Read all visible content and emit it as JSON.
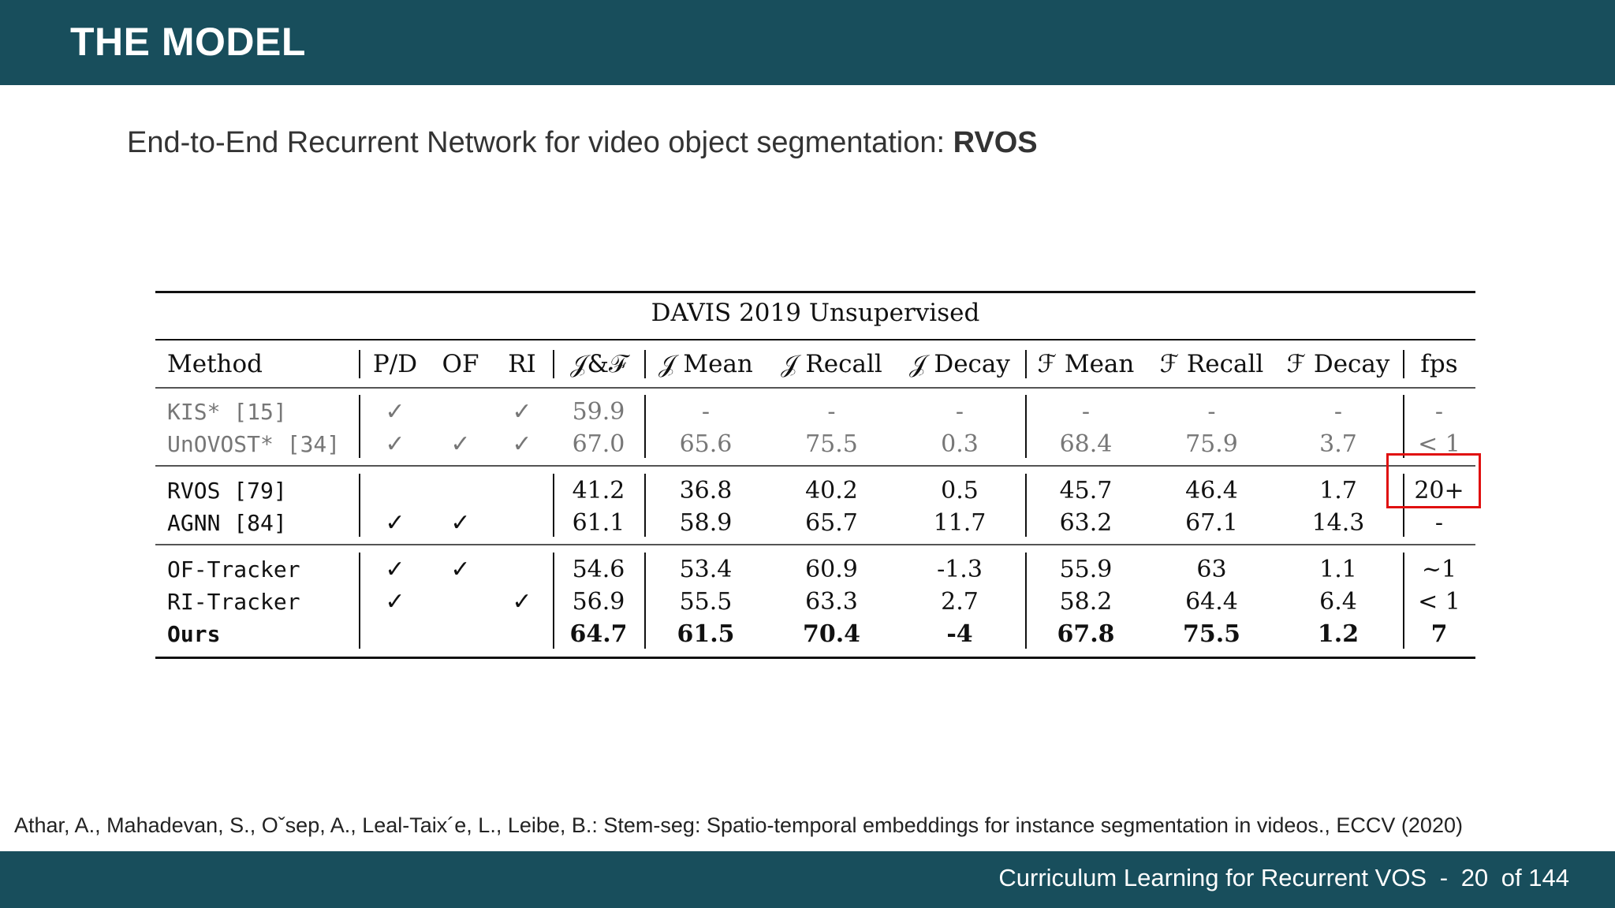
{
  "header": {
    "title": "THE MODEL"
  },
  "subtitle": {
    "text": "End-to-End Recurrent Network for video object segmentation: ",
    "bold": "RVOS"
  },
  "table": {
    "caption": "DAVIS 2019 Unsupervised",
    "columns": [
      "Method",
      "P/D",
      "OF",
      "RI",
      "𝒥&ℱ",
      "𝒥 Mean",
      "𝒥 Recall",
      "𝒥 Decay",
      "ℱ Mean",
      "ℱ Recall",
      "ℱ Decay",
      "fps"
    ],
    "groups": [
      {
        "rows": [
          {
            "method": "KIS* [15]",
            "pd": "✓",
            "of": "",
            "ri": "✓",
            "jf": "59.9",
            "jmean": "-",
            "jrecall": "-",
            "jdecay": "-",
            "fmean": "-",
            "frecall": "-",
            "fdecay": "-",
            "fps": "-",
            "style": "gray"
          },
          {
            "method": "UnOVOST* [34]",
            "pd": "✓",
            "of": "✓",
            "ri": "✓",
            "jf": "67.0",
            "jmean": "65.6",
            "jrecall": "75.5",
            "jdecay": "0.3",
            "fmean": "68.4",
            "frecall": "75.9",
            "fdecay": "3.7",
            "fps": "< 1",
            "style": "gray"
          }
        ]
      },
      {
        "rows": [
          {
            "method": "RVOS [79]",
            "pd": "",
            "of": "",
            "ri": "",
            "jf": "41.2",
            "jmean": "36.8",
            "jrecall": "40.2",
            "jdecay": "0.5",
            "fmean": "45.7",
            "frecall": "46.4",
            "fdecay": "1.7",
            "fps": "20+",
            "style": "normal"
          },
          {
            "method": "AGNN [84]",
            "pd": "✓",
            "of": "✓",
            "ri": "",
            "jf": "61.1",
            "jmean": "58.9",
            "jrecall": "65.7",
            "jdecay": "11.7",
            "fmean": "63.2",
            "frecall": "67.1",
            "fdecay": "14.3",
            "fps": "-",
            "style": "normal"
          }
        ]
      },
      {
        "rows": [
          {
            "method": "OF-Tracker",
            "pd": "✓",
            "of": "✓",
            "ri": "",
            "jf": "54.6",
            "jmean": "53.4",
            "jrecall": "60.9",
            "jdecay": "-1.3",
            "fmean": "55.9",
            "frecall": "63",
            "fdecay": "1.1",
            "fps": "~1",
            "style": "normal"
          },
          {
            "method": "RI-Tracker",
            "pd": "✓",
            "of": "",
            "ri": "✓",
            "jf": "56.9",
            "jmean": "55.5",
            "jrecall": "63.3",
            "jdecay": "2.7",
            "fmean": "58.2",
            "frecall": "64.4",
            "fdecay": "6.4",
            "fps": "< 1",
            "style": "normal"
          },
          {
            "method": "Ours",
            "pd": "",
            "of": "",
            "ri": "",
            "jf": "64.7",
            "jmean": "61.5",
            "jrecall": "70.4",
            "jdecay": "-4",
            "fmean": "67.8",
            "frecall": "75.5",
            "fdecay": "1.2",
            "fps": "7",
            "style": "bold"
          }
        ]
      }
    ],
    "highlight": {
      "cell": "RVOS fps",
      "color": "#e01010"
    }
  },
  "citation": "Athar, A., Mahadevan, S., Oˇsep, A., Leal-Taix´e, L., Leibe, B.: Stem-seg: Spatio-temporal embeddings for instance segmentation in videos., ECCV (2020)",
  "footer": {
    "course": "Curriculum Learning for Recurrent VOS",
    "sep": "-",
    "page": "20",
    "of": "of 144"
  },
  "colors": {
    "header_bg": "#184e5c",
    "highlight": "#e01010"
  }
}
